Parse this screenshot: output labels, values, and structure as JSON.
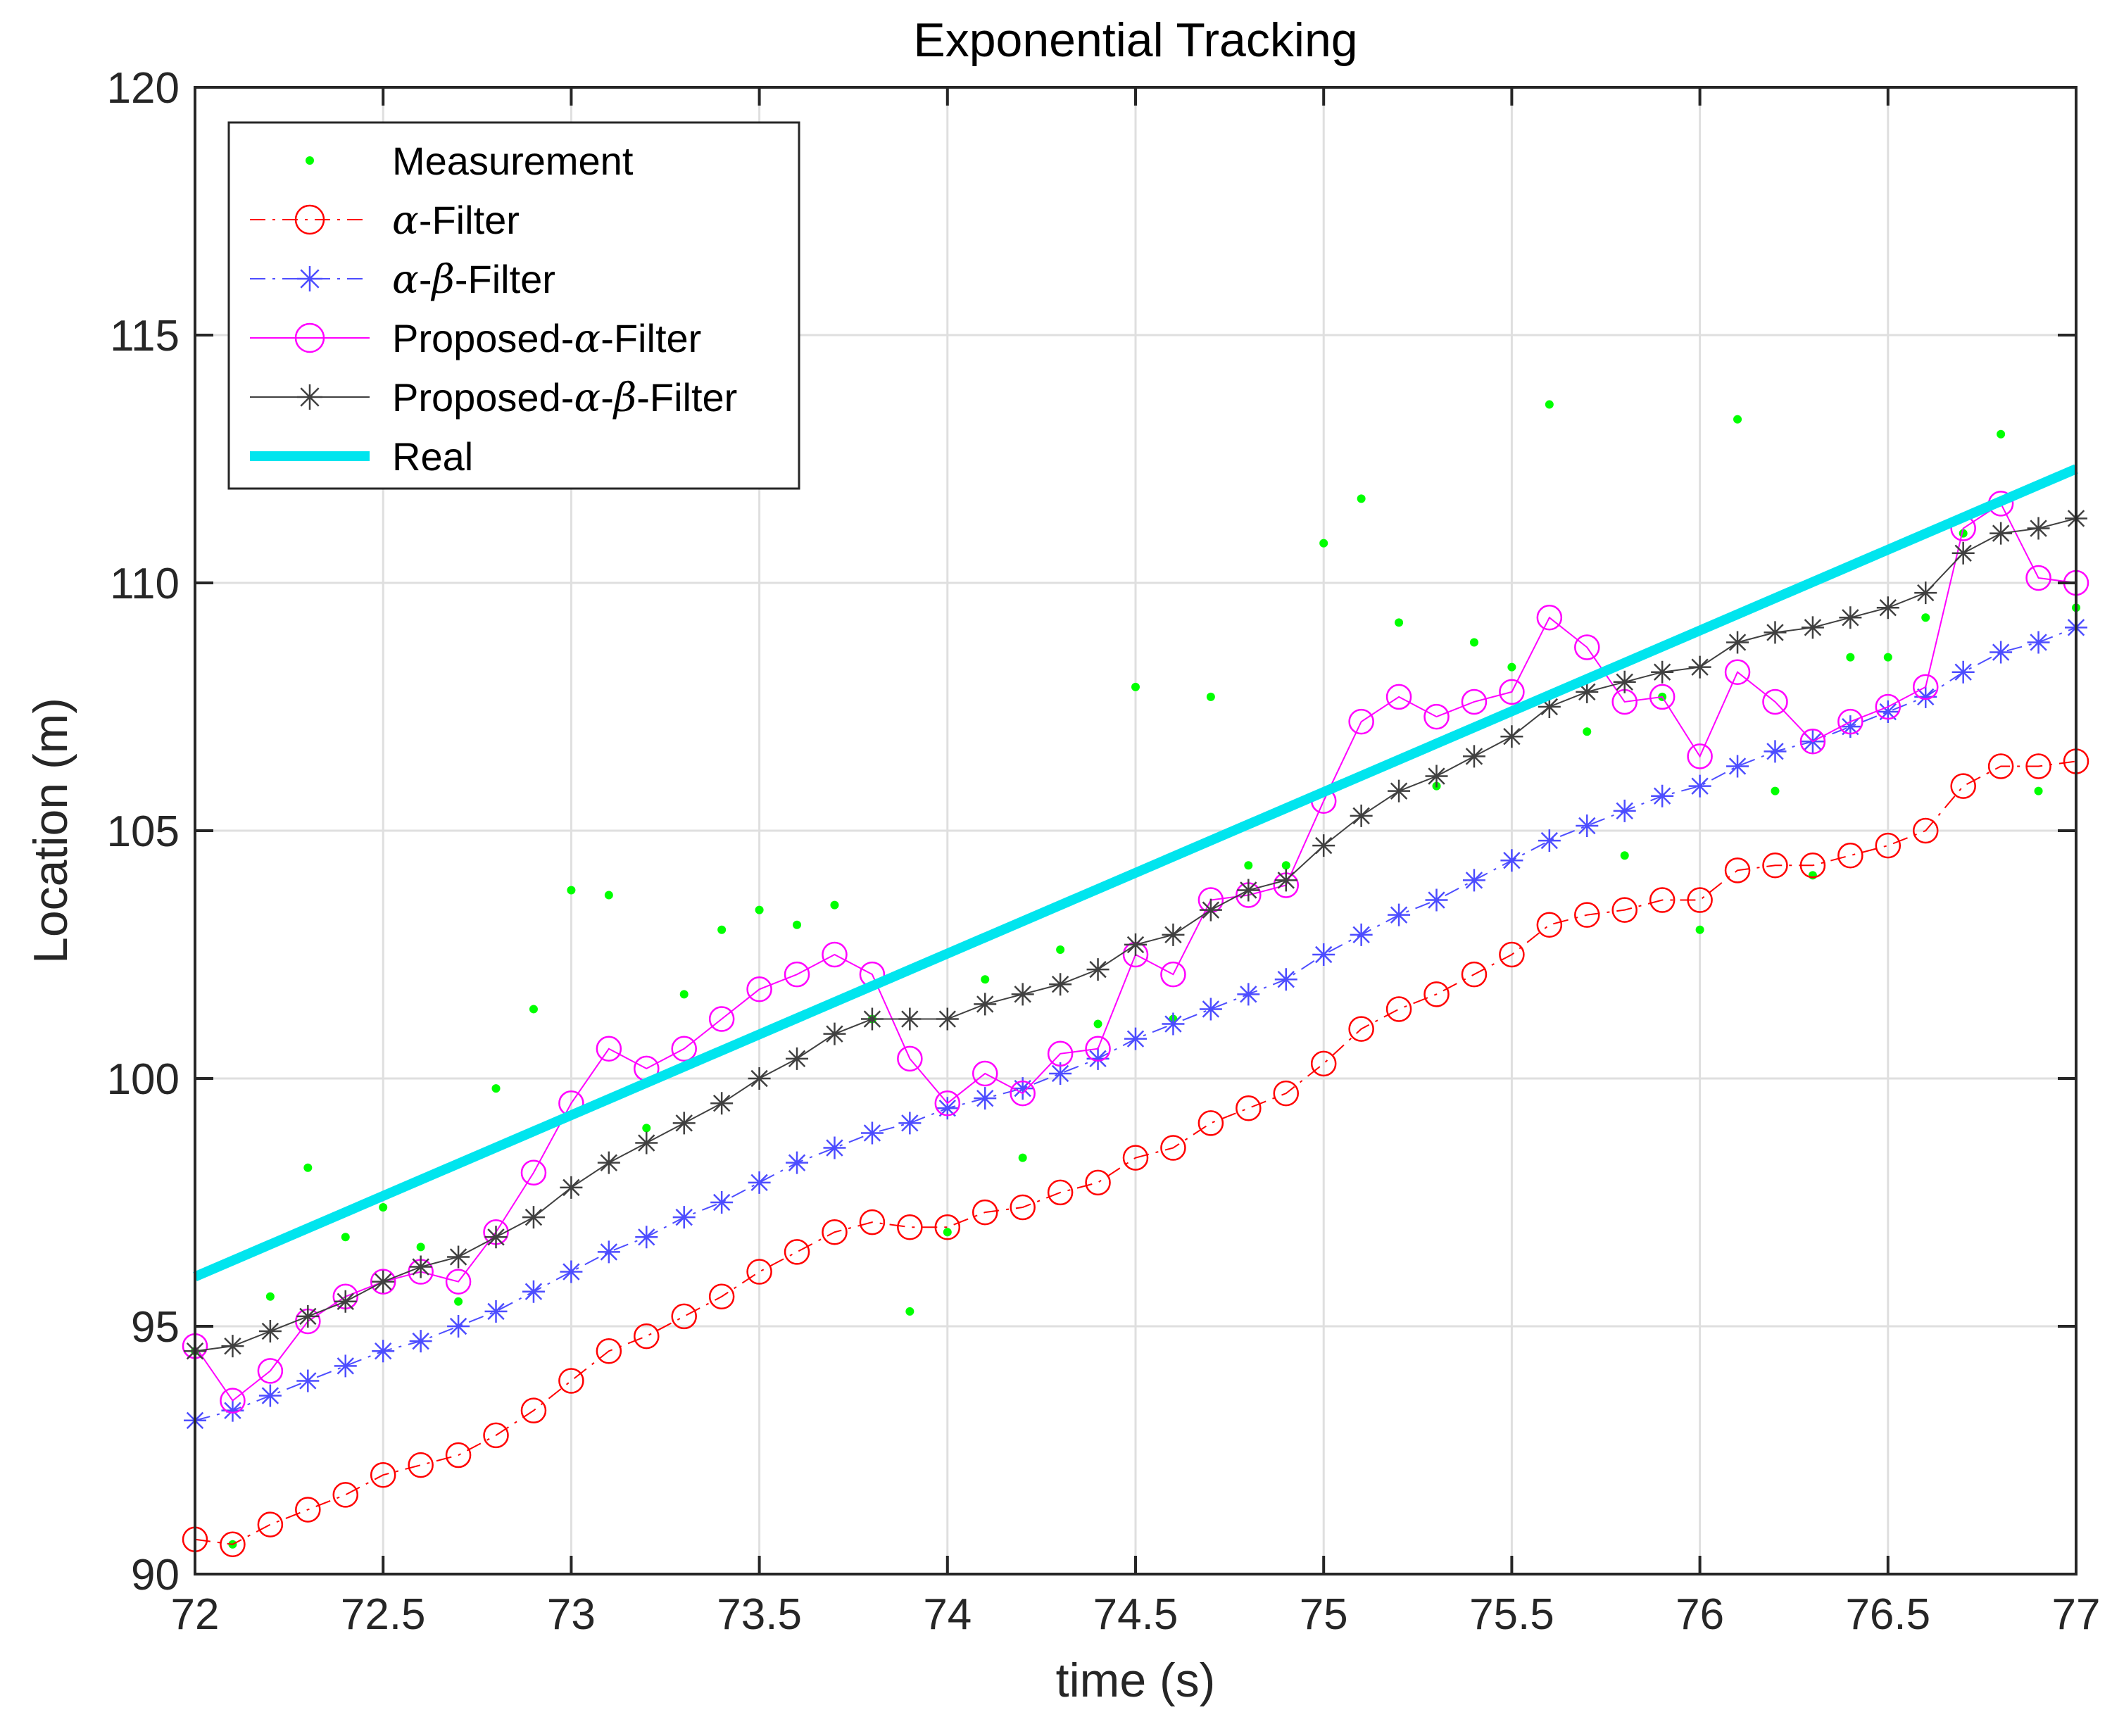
{
  "chart_data": {
    "type": "line",
    "title": "Exponential Tracking",
    "xlabel": "time (s)",
    "ylabel": "Location (m)",
    "xlim": [
      72,
      77
    ],
    "ylim": [
      90,
      120
    ],
    "xticks": [
      "72",
      "72.5",
      "73",
      "73.5",
      "74",
      "74.5",
      "75",
      "75.5",
      "76",
      "76.5",
      "77"
    ],
    "yticks": [
      "90",
      "95",
      "100",
      "105",
      "110",
      "115",
      "120"
    ],
    "grid": true,
    "legend_position": "top-left",
    "x": [
      72.0,
      72.1,
      72.2,
      72.3,
      72.4,
      72.5,
      72.6,
      72.7,
      72.8,
      72.9,
      73.0,
      73.1,
      73.2,
      73.3,
      73.4,
      73.5,
      73.6,
      73.7,
      73.8,
      73.9,
      74.0,
      74.1,
      74.2,
      74.3,
      74.4,
      74.5,
      74.6,
      74.7,
      74.8,
      74.9,
      75.0,
      75.1,
      75.2,
      75.3,
      75.4,
      75.5,
      75.6,
      75.7,
      75.8,
      75.9,
      76.0,
      76.1,
      76.2,
      76.3,
      76.4,
      76.5,
      76.6,
      76.7,
      76.8,
      76.9,
      77.0
    ],
    "series": [
      {
        "name": "Measurement",
        "legend_label": "Measurement",
        "style": "points",
        "color": "#00ff00",
        "values": [
          94.5,
          90.6,
          95.6,
          98.2,
          96.8,
          97.4,
          96.6,
          95.5,
          99.8,
          101.4,
          103.8,
          103.7,
          99.0,
          101.7,
          103.0,
          103.4,
          103.1,
          103.5,
          101.2,
          95.3,
          96.9,
          102.0,
          98.4,
          102.6,
          101.1,
          107.9,
          101.2,
          107.7,
          104.3,
          104.3,
          110.8,
          111.7,
          109.2,
          105.9,
          108.8,
          108.3,
          113.6,
          107.0,
          104.5,
          107.7,
          103.0,
          113.3,
          105.8,
          104.1,
          108.5,
          108.5,
          109.3,
          111.0,
          113.0,
          105.8,
          109.5
        ]
      },
      {
        "name": "alpha-Filter",
        "legend_prefix": "α",
        "legend_suffix": "-Filter",
        "style": "dashdot-circle",
        "color": "#ff0000",
        "values": [
          90.7,
          90.6,
          91.0,
          91.3,
          91.6,
          92.0,
          92.2,
          92.4,
          92.8,
          93.3,
          93.9,
          94.5,
          94.8,
          95.2,
          95.6,
          96.1,
          96.5,
          96.9,
          97.1,
          97.0,
          97.0,
          97.3,
          97.4,
          97.7,
          97.9,
          98.4,
          98.6,
          99.1,
          99.4,
          99.7,
          100.3,
          101.0,
          101.4,
          101.7,
          102.1,
          102.5,
          103.1,
          103.3,
          103.4,
          103.6,
          103.6,
          104.2,
          104.3,
          104.3,
          104.5,
          104.7,
          105.0,
          105.9,
          106.3,
          106.3,
          106.4
        ]
      },
      {
        "name": "alpha-beta-Filter",
        "legend_prefix": "α",
        "legend_mid": "β",
        "legend_suffix": "-Filter",
        "style": "dashdot-star",
        "color": "#4d4dff",
        "values": [
          93.1,
          93.3,
          93.6,
          93.9,
          94.2,
          94.5,
          94.7,
          95.0,
          95.3,
          95.7,
          96.1,
          96.5,
          96.8,
          97.2,
          97.5,
          97.9,
          98.3,
          98.6,
          98.9,
          99.1,
          99.4,
          99.6,
          99.8,
          100.1,
          100.4,
          100.8,
          101.1,
          101.4,
          101.7,
          102.0,
          102.5,
          102.9,
          103.3,
          103.6,
          104.0,
          104.4,
          104.8,
          105.1,
          105.4,
          105.7,
          105.9,
          106.3,
          106.6,
          106.8,
          107.1,
          107.4,
          107.7,
          108.2,
          108.6,
          108.8,
          109.1
        ]
      },
      {
        "name": "Proposed-alpha-Filter",
        "legend_prefix": "Proposed-",
        "legend_alpha": "α",
        "legend_suffix": "-Filter",
        "style": "solid-circle",
        "color": "#ff00ff",
        "values": [
          94.6,
          93.5,
          94.1,
          95.1,
          95.6,
          95.9,
          96.1,
          95.9,
          96.9,
          98.1,
          99.5,
          100.6,
          100.2,
          100.6,
          101.2,
          101.8,
          102.1,
          102.5,
          102.1,
          100.4,
          99.5,
          100.1,
          99.7,
          100.5,
          100.6,
          102.5,
          102.1,
          103.6,
          103.7,
          103.9,
          105.6,
          107.2,
          107.7,
          107.3,
          107.6,
          107.8,
          109.3,
          108.7,
          107.6,
          107.7,
          106.5,
          108.2,
          107.6,
          106.8,
          107.2,
          107.5,
          107.9,
          111.1,
          111.6,
          110.1,
          110.0
        ]
      },
      {
        "name": "Proposed-alpha-beta-Filter",
        "legend_prefix": "Proposed-",
        "legend_alpha": "α",
        "legend_beta": "β",
        "legend_suffix": "-Filter",
        "style": "solid-star",
        "color": "#404040",
        "values": [
          94.5,
          94.6,
          94.9,
          95.2,
          95.5,
          95.9,
          96.2,
          96.4,
          96.8,
          97.2,
          97.8,
          98.3,
          98.7,
          99.1,
          99.5,
          100.0,
          100.4,
          100.9,
          101.2,
          101.2,
          101.2,
          101.5,
          101.7,
          101.9,
          102.2,
          102.7,
          102.9,
          103.4,
          103.8,
          104.0,
          104.7,
          105.3,
          105.8,
          106.1,
          106.5,
          106.9,
          107.5,
          107.8,
          108.0,
          108.2,
          108.3,
          108.8,
          109.0,
          109.1,
          109.3,
          109.5,
          109.8,
          110.6,
          111.0,
          111.1,
          111.3
        ]
      },
      {
        "name": "Real",
        "legend_label": "Real",
        "style": "thick-line",
        "color": "#00e5ee",
        "x_range": [
          72,
          77
        ],
        "values_at_ends": [
          96.0,
          112.3
        ]
      }
    ]
  }
}
